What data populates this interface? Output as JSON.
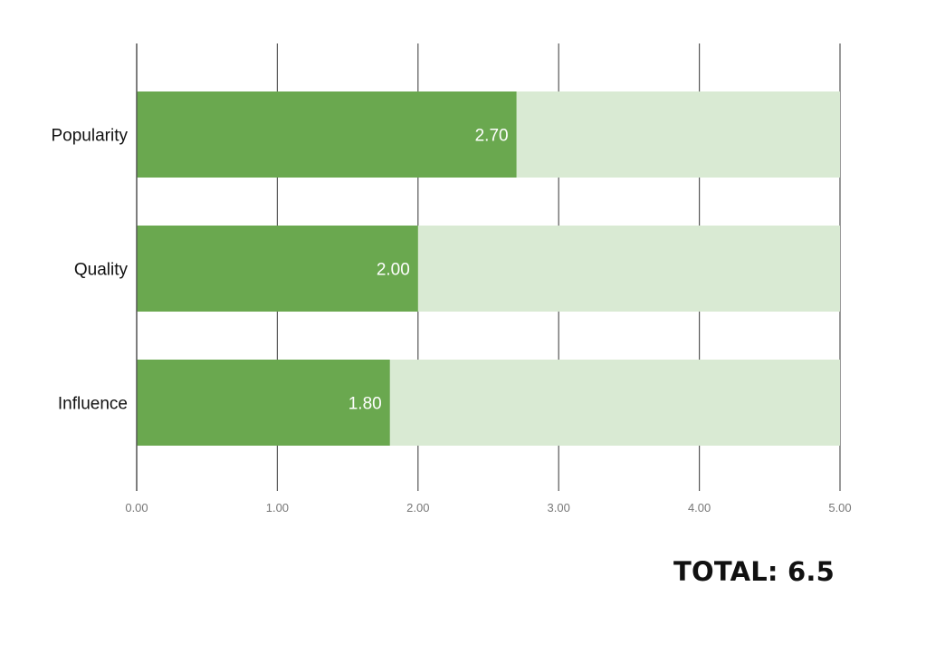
{
  "chart_data": {
    "type": "bar",
    "orientation": "horizontal",
    "categories": [
      "Popularity",
      "Quality",
      "Influence"
    ],
    "values": [
      2.7,
      2.0,
      1.8
    ],
    "value_labels": [
      "2.70",
      "2.00",
      "1.80"
    ],
    "max_value": 5,
    "xlim": [
      0,
      5
    ],
    "x_ticks": [
      0,
      1,
      2,
      3,
      4,
      5
    ],
    "x_tick_labels": [
      "0.00",
      "1.00",
      "2.00",
      "3.00",
      "4.00",
      "5.00"
    ],
    "grid": true,
    "colors": {
      "bar": "#6aa84f",
      "track": "#d9ead3",
      "grid": "#555555",
      "value_label": "#ffffff",
      "category_label": "#111111",
      "tick_label": "#777777"
    }
  },
  "summary": {
    "total_label": "TOTAL: 6.5"
  }
}
